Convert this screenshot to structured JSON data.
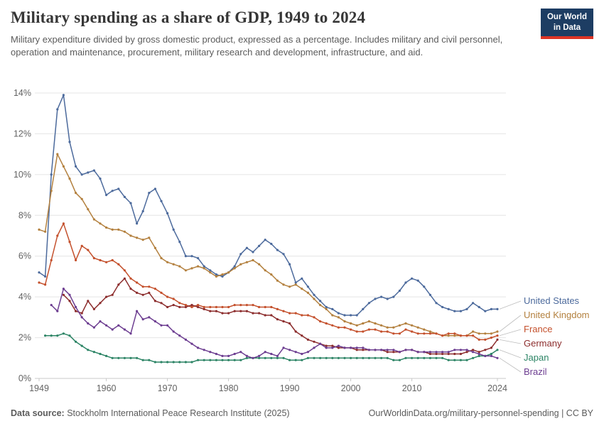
{
  "header": {
    "title": "Military spending as a share of GDP, 1949 to 2024",
    "subtitle": "Military expenditure divided by gross domestic product, expressed as a percentage. Includes military and civil personnel, operation and maintenance, procurement, military research and development, infrastructure, and aid.",
    "logo": {
      "line1": "Our World",
      "line2": "in Data",
      "bg_color": "#1d3d63",
      "accent_color": "#dd3425"
    }
  },
  "footer": {
    "source_label": "Data source:",
    "source_text": " Stockholm International Peace Research Institute (2025)",
    "link_text": "OurWorldinData.org/military-personnel-spending | CC BY"
  },
  "chart_data": {
    "type": "line",
    "title": "Military spending as a share of GDP, 1949 to 2024",
    "unit": "%",
    "grid": true,
    "markers": true,
    "legend_position": "right-end-labels",
    "x_domain": [
      1949,
      2024
    ],
    "ylim": [
      0,
      14
    ],
    "y_ticks_percent": [
      0,
      2,
      4,
      6,
      8,
      10,
      12,
      14
    ],
    "x_ticks": [
      1949,
      1960,
      1970,
      1980,
      1990,
      2000,
      2010,
      2024
    ],
    "series": [
      {
        "name": "United States",
        "color": "#4C6A9C",
        "start_year": 1949,
        "values": [
          5.2,
          5.0,
          10.0,
          13.2,
          13.9,
          11.6,
          10.4,
          10.0,
          10.1,
          10.2,
          9.8,
          9.0,
          9.2,
          9.3,
          8.9,
          8.6,
          7.6,
          8.2,
          9.1,
          9.3,
          8.7,
          8.1,
          7.3,
          6.7,
          6.0,
          6.0,
          5.9,
          5.5,
          5.3,
          5.1,
          5.0,
          5.2,
          5.5,
          6.1,
          6.4,
          6.2,
          6.5,
          6.8,
          6.6,
          6.3,
          6.1,
          5.6,
          4.7,
          4.9,
          4.5,
          4.1,
          3.8,
          3.5,
          3.4,
          3.2,
          3.1,
          3.1,
          3.1,
          3.4,
          3.7,
          3.9,
          4.0,
          3.9,
          4.0,
          4.3,
          4.7,
          4.9,
          4.8,
          4.5,
          4.1,
          3.7,
          3.5,
          3.4,
          3.3,
          3.3,
          3.4,
          3.7,
          3.5,
          3.3,
          3.4,
          3.4
        ]
      },
      {
        "name": "United Kingdom",
        "color": "#B3803E",
        "start_year": 1949,
        "values": [
          7.3,
          7.2,
          9.2,
          11.0,
          10.4,
          9.8,
          9.1,
          8.8,
          8.3,
          7.8,
          7.6,
          7.4,
          7.3,
          7.3,
          7.2,
          7.0,
          6.9,
          6.8,
          6.9,
          6.4,
          5.9,
          5.7,
          5.6,
          5.5,
          5.3,
          5.4,
          5.5,
          5.4,
          5.2,
          5.0,
          5.1,
          5.2,
          5.4,
          5.6,
          5.7,
          5.8,
          5.6,
          5.3,
          5.1,
          4.8,
          4.6,
          4.5,
          4.6,
          4.4,
          4.2,
          3.9,
          3.6,
          3.4,
          3.1,
          3.0,
          2.8,
          2.7,
          2.6,
          2.7,
          2.8,
          2.7,
          2.6,
          2.5,
          2.5,
          2.6,
          2.7,
          2.6,
          2.5,
          2.4,
          2.3,
          2.2,
          2.1,
          2.1,
          2.1,
          2.1,
          2.1,
          2.3,
          2.2,
          2.2,
          2.2,
          2.3
        ]
      },
      {
        "name": "France",
        "color": "#C4502C",
        "start_year": 1949,
        "values": [
          4.7,
          4.6,
          5.8,
          7.0,
          7.6,
          6.7,
          5.8,
          6.5,
          6.3,
          5.9,
          5.8,
          5.7,
          5.8,
          5.6,
          5.3,
          4.9,
          4.7,
          4.5,
          4.5,
          4.4,
          4.2,
          4.0,
          3.9,
          3.7,
          3.6,
          3.5,
          3.6,
          3.5,
          3.5,
          3.5,
          3.5,
          3.5,
          3.6,
          3.6,
          3.6,
          3.6,
          3.5,
          3.5,
          3.5,
          3.4,
          3.3,
          3.2,
          3.2,
          3.1,
          3.1,
          3.0,
          2.8,
          2.7,
          2.6,
          2.5,
          2.5,
          2.4,
          2.3,
          2.3,
          2.4,
          2.4,
          2.3,
          2.3,
          2.2,
          2.2,
          2.4,
          2.3,
          2.2,
          2.2,
          2.2,
          2.2,
          2.1,
          2.2,
          2.2,
          2.1,
          2.1,
          2.1,
          1.9,
          1.9,
          2.0,
          2.1
        ]
      },
      {
        "name": "Germany",
        "color": "#8C2D2D",
        "start_year": 1953,
        "values": [
          4.1,
          3.8,
          3.3,
          3.2,
          3.8,
          3.4,
          3.7,
          4.0,
          4.1,
          4.6,
          4.9,
          4.4,
          4.2,
          4.1,
          4.2,
          3.8,
          3.7,
          3.5,
          3.6,
          3.5,
          3.5,
          3.6,
          3.5,
          3.4,
          3.3,
          3.3,
          3.2,
          3.2,
          3.3,
          3.3,
          3.3,
          3.2,
          3.2,
          3.1,
          3.1,
          2.9,
          2.8,
          2.7,
          2.3,
          2.1,
          1.9,
          1.8,
          1.7,
          1.6,
          1.6,
          1.5,
          1.5,
          1.5,
          1.4,
          1.4,
          1.4,
          1.4,
          1.4,
          1.3,
          1.3,
          1.3,
          1.4,
          1.4,
          1.3,
          1.3,
          1.2,
          1.2,
          1.2,
          1.2,
          1.2,
          1.2,
          1.3,
          1.4,
          1.3,
          1.4,
          1.5,
          1.9
        ]
      },
      {
        "name": "Japan",
        "color": "#2C8465",
        "start_year": 1950,
        "values": [
          2.1,
          2.1,
          2.1,
          2.2,
          2.1,
          1.8,
          1.6,
          1.4,
          1.3,
          1.2,
          1.1,
          1.0,
          1.0,
          1.0,
          1.0,
          1.0,
          0.9,
          0.9,
          0.8,
          0.8,
          0.8,
          0.8,
          0.8,
          0.8,
          0.8,
          0.9,
          0.9,
          0.9,
          0.9,
          0.9,
          0.9,
          0.9,
          0.9,
          1.0,
          1.0,
          1.0,
          1.0,
          1.0,
          1.0,
          1.0,
          0.9,
          0.9,
          0.9,
          1.0,
          1.0,
          1.0,
          1.0,
          1.0,
          1.0,
          1.0,
          1.0,
          1.0,
          1.0,
          1.0,
          1.0,
          1.0,
          1.0,
          0.9,
          0.9,
          1.0,
          1.0,
          1.0,
          1.0,
          1.0,
          1.0,
          1.0,
          0.9,
          0.9,
          0.9,
          0.9,
          1.0,
          1.1,
          1.1,
          1.2,
          1.4
        ]
      },
      {
        "name": "Brazil",
        "color": "#6D3E91",
        "start_year": 1951,
        "values": [
          3.6,
          3.3,
          4.4,
          4.1,
          3.5,
          3.0,
          2.7,
          2.5,
          2.8,
          2.6,
          2.4,
          2.6,
          2.4,
          2.2,
          3.3,
          2.9,
          3.0,
          2.8,
          2.6,
          2.6,
          2.3,
          2.1,
          1.9,
          1.7,
          1.5,
          1.4,
          1.3,
          1.2,
          1.1,
          1.1,
          1.2,
          1.3,
          1.1,
          1.0,
          1.1,
          1.3,
          1.2,
          1.1,
          1.5,
          1.4,
          1.3,
          1.2,
          1.3,
          1.5,
          1.7,
          1.5,
          1.5,
          1.6,
          1.5,
          1.5,
          1.5,
          1.5,
          1.4,
          1.4,
          1.4,
          1.4,
          1.4,
          1.3,
          1.4,
          1.4,
          1.3,
          1.3,
          1.3,
          1.3,
          1.3,
          1.3,
          1.4,
          1.4,
          1.4,
          1.3,
          1.2,
          1.1,
          1.1,
          1.0
        ]
      }
    ]
  }
}
